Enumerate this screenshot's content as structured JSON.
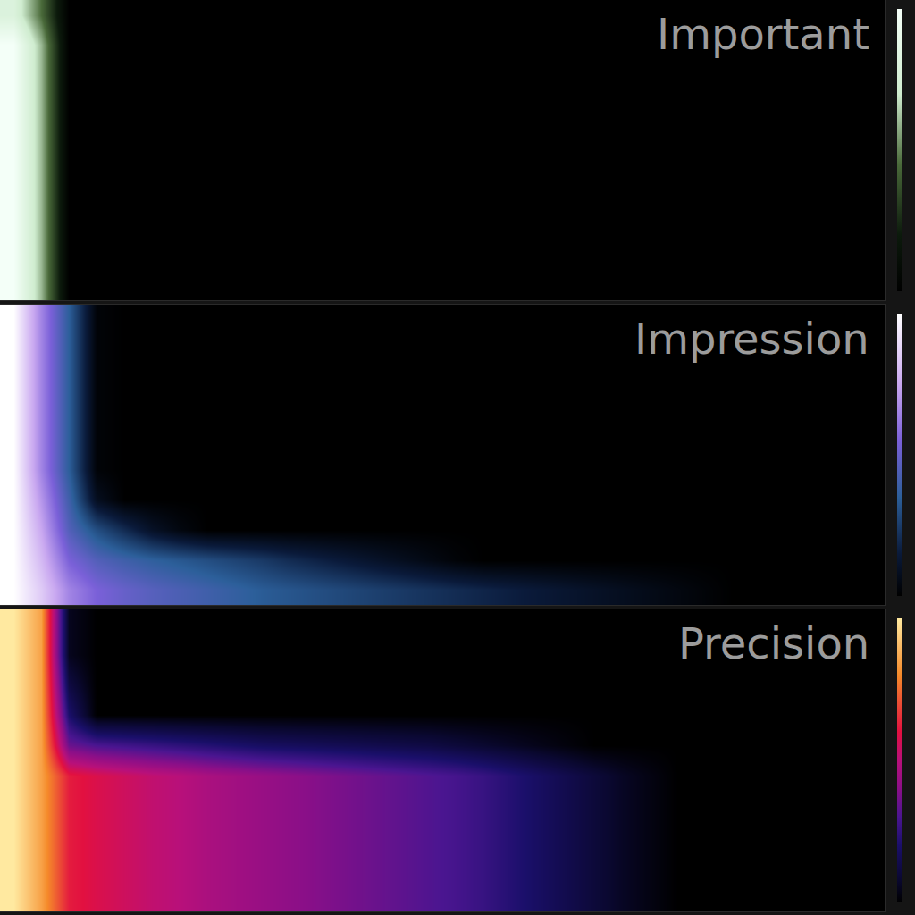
{
  "chart_data": [
    {
      "type": "heatmap",
      "title": "Important",
      "tick_labels": false,
      "xlim": [
        -0.5,
        31.5
      ],
      "ylim": [
        -0.5,
        9.5
      ],
      "zlim": [
        0,
        1
      ],
      "z": [
        [
          1,
          0.6,
          0,
          0,
          0,
          0,
          0,
          0,
          0,
          0,
          0,
          0,
          0,
          0,
          0,
          0,
          0,
          0,
          0,
          0,
          0,
          0,
          0,
          0,
          0,
          0,
          0,
          0,
          0,
          0,
          0,
          0
        ],
        [
          1,
          0.6,
          0,
          0,
          0,
          0,
          0,
          0,
          0,
          0,
          0,
          0,
          0,
          0,
          0,
          0,
          0,
          0,
          0,
          0,
          0,
          0,
          0,
          0,
          0,
          0,
          0,
          0,
          0,
          0,
          0,
          0
        ],
        [
          1,
          0.6,
          0,
          0,
          0,
          0,
          0,
          0,
          0,
          0,
          0,
          0,
          0,
          0,
          0,
          0,
          0,
          0,
          0,
          0,
          0,
          0,
          0,
          0,
          0,
          0,
          0,
          0,
          0,
          0,
          0,
          0
        ],
        [
          1,
          0.6,
          0,
          0,
          0,
          0,
          0,
          0,
          0,
          0,
          0,
          0,
          0,
          0,
          0,
          0,
          0,
          0,
          0,
          0,
          0,
          0,
          0,
          0,
          0,
          0,
          0,
          0,
          0,
          0,
          0,
          0
        ],
        [
          1,
          0.6,
          0,
          0,
          0,
          0,
          0,
          0,
          0,
          0,
          0,
          0,
          0,
          0,
          0,
          0,
          0,
          0,
          0,
          0,
          0,
          0,
          0,
          0,
          0,
          0,
          0,
          0,
          0,
          0,
          0,
          0
        ],
        [
          1,
          0.6,
          0,
          0,
          0,
          0,
          0,
          0,
          0,
          0,
          0,
          0,
          0,
          0,
          0,
          0,
          0,
          0,
          0,
          0,
          0,
          0,
          0,
          0,
          0,
          0,
          0,
          0,
          0,
          0,
          0,
          0
        ],
        [
          1,
          0.6,
          0,
          0,
          0,
          0,
          0,
          0,
          0,
          0,
          0,
          0,
          0,
          0,
          0,
          0,
          0,
          0,
          0,
          0,
          0,
          0,
          0,
          0,
          0,
          0,
          0,
          0,
          0,
          0,
          0,
          0
        ],
        [
          1,
          0.6,
          0,
          0,
          0,
          0,
          0,
          0,
          0,
          0,
          0,
          0,
          0,
          0,
          0,
          0,
          0,
          0,
          0,
          0,
          0,
          0,
          0,
          0,
          0,
          0,
          0,
          0,
          0,
          0,
          0,
          0
        ],
        [
          1,
          0.6,
          0,
          0,
          0,
          0,
          0,
          0,
          0,
          0,
          0,
          0,
          0,
          0,
          0,
          0,
          0,
          0,
          0,
          0,
          0,
          0,
          0,
          0,
          0,
          0,
          0,
          0,
          0,
          0,
          0,
          0
        ],
        [
          0.8,
          0.45,
          0,
          0,
          0,
          0,
          0,
          0,
          0,
          0,
          0,
          0,
          0,
          0,
          0,
          0,
          0,
          0,
          0,
          0,
          0,
          0,
          0,
          0,
          0,
          0,
          0,
          0,
          0,
          0,
          0,
          0
        ]
      ]
    },
    {
      "type": "heatmap",
      "title": "Impression",
      "tick_labels": false,
      "xlim": [
        -0.5,
        31.5
      ],
      "ylim": [
        -0.5,
        9.5
      ],
      "zlim": [
        0,
        1
      ],
      "z": [
        [
          1,
          0.85,
          0.65,
          0.55,
          0.5,
          0.46,
          0.43,
          0.4,
          0.37,
          0.34,
          0.32,
          0.3,
          0.28,
          0.26,
          0.24,
          0.22,
          0.2,
          0.18,
          0.16,
          0.14,
          0.12,
          0.1,
          0.08,
          0.06,
          0.04,
          0.02,
          0,
          0,
          0,
          0,
          0,
          0
        ],
        [
          1,
          0.8,
          0.55,
          0.45,
          0.4,
          0.36,
          0.33,
          0.3,
          0.27,
          0.24,
          0.2,
          0.17,
          0.14,
          0.11,
          0.08,
          0.05,
          0.02,
          0,
          0,
          0,
          0,
          0,
          0,
          0,
          0,
          0,
          0,
          0,
          0,
          0,
          0,
          0
        ],
        [
          1,
          0.75,
          0.45,
          0.3,
          0.2,
          0.1,
          0.04,
          0,
          0,
          0,
          0,
          0,
          0,
          0,
          0,
          0,
          0,
          0,
          0,
          0,
          0,
          0,
          0,
          0,
          0,
          0,
          0,
          0,
          0,
          0,
          0,
          0
        ],
        [
          1,
          0.7,
          0.4,
          0.08,
          0,
          0,
          0,
          0,
          0,
          0,
          0,
          0,
          0,
          0,
          0,
          0,
          0,
          0,
          0,
          0,
          0,
          0,
          0,
          0,
          0,
          0,
          0,
          0,
          0,
          0,
          0,
          0
        ],
        [
          1,
          0.65,
          0.35,
          0.02,
          0,
          0,
          0,
          0,
          0,
          0,
          0,
          0,
          0,
          0,
          0,
          0,
          0,
          0,
          0,
          0,
          0,
          0,
          0,
          0,
          0,
          0,
          0,
          0,
          0,
          0,
          0,
          0
        ],
        [
          1,
          0.65,
          0.35,
          0.02,
          0,
          0,
          0,
          0,
          0,
          0,
          0,
          0,
          0,
          0,
          0,
          0,
          0,
          0,
          0,
          0,
          0,
          0,
          0,
          0,
          0,
          0,
          0,
          0,
          0,
          0,
          0,
          0
        ],
        [
          1,
          0.65,
          0.35,
          0.02,
          0,
          0,
          0,
          0,
          0,
          0,
          0,
          0,
          0,
          0,
          0,
          0,
          0,
          0,
          0,
          0,
          0,
          0,
          0,
          0,
          0,
          0,
          0,
          0,
          0,
          0,
          0,
          0
        ],
        [
          1,
          0.65,
          0.35,
          0.02,
          0,
          0,
          0,
          0,
          0,
          0,
          0,
          0,
          0,
          0,
          0,
          0,
          0,
          0,
          0,
          0,
          0,
          0,
          0,
          0,
          0,
          0,
          0,
          0,
          0,
          0,
          0,
          0
        ],
        [
          1,
          0.65,
          0.35,
          0.02,
          0,
          0,
          0,
          0,
          0,
          0,
          0,
          0,
          0,
          0,
          0,
          0,
          0,
          0,
          0,
          0,
          0,
          0,
          0,
          0,
          0,
          0,
          0,
          0,
          0,
          0,
          0,
          0
        ],
        [
          1,
          0.65,
          0.35,
          0.02,
          0,
          0,
          0,
          0,
          0,
          0,
          0,
          0,
          0,
          0,
          0,
          0,
          0,
          0,
          0,
          0,
          0,
          0,
          0,
          0,
          0,
          0,
          0,
          0,
          0,
          0,
          0,
          0
        ]
      ]
    },
    {
      "type": "heatmap",
      "title": "Precision",
      "tick_labels": false,
      "xlim": [
        -0.5,
        31.5
      ],
      "ylim": [
        -0.5,
        9.5
      ],
      "zlim": [
        0,
        1
      ],
      "z": [
        [
          1,
          0.85,
          0.62,
          0.58,
          0.55,
          0.52,
          0.5,
          0.47,
          0.45,
          0.43,
          0.41,
          0.39,
          0.37,
          0.35,
          0.33,
          0.31,
          0.29,
          0.26,
          0.22,
          0.18,
          0.14,
          0.1,
          0.06,
          0.03,
          0,
          0,
          0,
          0,
          0,
          0,
          0,
          0
        ],
        [
          1,
          0.85,
          0.62,
          0.58,
          0.55,
          0.52,
          0.5,
          0.47,
          0.45,
          0.43,
          0.41,
          0.39,
          0.37,
          0.35,
          0.33,
          0.31,
          0.29,
          0.26,
          0.22,
          0.18,
          0.14,
          0.1,
          0.06,
          0.03,
          0,
          0,
          0,
          0,
          0,
          0,
          0,
          0
        ],
        [
          1,
          0.85,
          0.62,
          0.58,
          0.55,
          0.52,
          0.5,
          0.47,
          0.45,
          0.43,
          0.41,
          0.39,
          0.37,
          0.35,
          0.33,
          0.31,
          0.29,
          0.26,
          0.22,
          0.18,
          0.14,
          0.1,
          0.06,
          0.03,
          0,
          0,
          0,
          0,
          0,
          0,
          0,
          0
        ],
        [
          1,
          0.85,
          0.62,
          0.58,
          0.55,
          0.52,
          0.5,
          0.47,
          0.45,
          0.43,
          0.41,
          0.39,
          0.37,
          0.35,
          0.33,
          0.31,
          0.29,
          0.26,
          0.22,
          0.18,
          0.14,
          0.1,
          0.06,
          0.03,
          0,
          0,
          0,
          0,
          0,
          0,
          0,
          0
        ],
        [
          1,
          0.85,
          0.62,
          0.58,
          0.55,
          0.52,
          0.5,
          0.47,
          0.45,
          0.43,
          0.41,
          0.39,
          0.37,
          0.35,
          0.33,
          0.31,
          0.29,
          0.26,
          0.22,
          0.18,
          0.14,
          0.1,
          0.06,
          0.03,
          0,
          0,
          0,
          0,
          0,
          0,
          0,
          0
        ],
        [
          1,
          0.85,
          0.35,
          0.3,
          0.28,
          0.26,
          0.24,
          0.22,
          0.2,
          0.18,
          0.17,
          0.16,
          0.15,
          0.14,
          0.13,
          0.12,
          0.1,
          0.08,
          0.06,
          0.04,
          0.02,
          0,
          0,
          0,
          0,
          0,
          0,
          0,
          0,
          0,
          0,
          0
        ],
        [
          1,
          0.85,
          0.2,
          0,
          0,
          0,
          0,
          0,
          0,
          0,
          0,
          0,
          0,
          0,
          0,
          0,
          0,
          0,
          0,
          0,
          0,
          0,
          0,
          0,
          0,
          0,
          0,
          0,
          0,
          0,
          0,
          0
        ],
        [
          1,
          0.85,
          0.12,
          0,
          0,
          0,
          0,
          0,
          0,
          0,
          0,
          0,
          0,
          0,
          0,
          0,
          0,
          0,
          0,
          0,
          0,
          0,
          0,
          0,
          0,
          0,
          0,
          0,
          0,
          0,
          0,
          0
        ],
        [
          1,
          0.85,
          0.05,
          0,
          0,
          0,
          0,
          0,
          0,
          0,
          0,
          0,
          0,
          0,
          0,
          0,
          0,
          0,
          0,
          0,
          0,
          0,
          0,
          0,
          0,
          0,
          0,
          0,
          0,
          0,
          0,
          0
        ],
        [
          1,
          0.85,
          0.05,
          0,
          0,
          0,
          0,
          0,
          0,
          0,
          0,
          0,
          0,
          0,
          0,
          0,
          0,
          0,
          0,
          0,
          0,
          0,
          0,
          0,
          0,
          0,
          0,
          0,
          0,
          0,
          0,
          0
        ]
      ]
    }
  ]
}
